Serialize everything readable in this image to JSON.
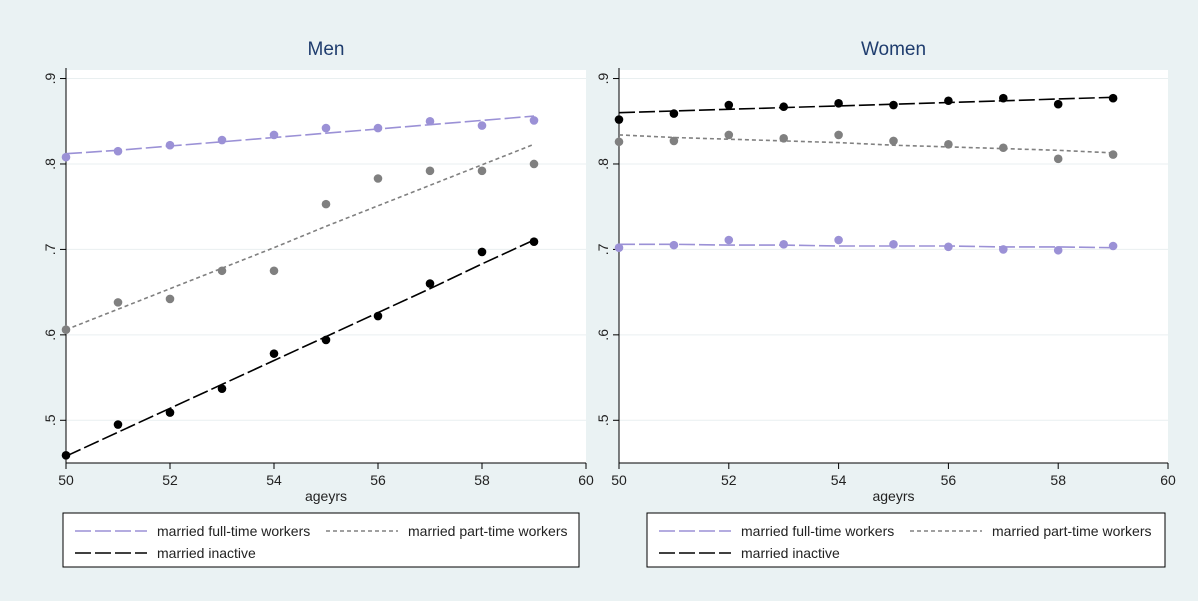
{
  "chart_data": [
    {
      "type": "scatter",
      "title": "Men",
      "xlabel": "ageyrs",
      "ylabel": "",
      "xlim": [
        50,
        60
      ],
      "ylim": [
        0.45,
        0.91
      ],
      "x_ticks": [
        50,
        52,
        54,
        56,
        58,
        60
      ],
      "x_tick_labels": [
        "50",
        "52",
        "54",
        "56",
        "58",
        "60"
      ],
      "y_ticks": [
        0.5,
        0.6,
        0.7,
        0.8,
        0.9
      ],
      "y_tick_labels": [
        ".5",
        ".6",
        ".7",
        ".8",
        ".9"
      ],
      "grid": true,
      "legend_position": "bottom",
      "series": [
        {
          "name": "married full-time workers",
          "color": "#9b91d6",
          "line_style": "long-dash",
          "x": [
            50,
            51,
            52,
            53,
            54,
            55,
            56,
            57,
            58,
            59
          ],
          "points": [
            0.808,
            0.815,
            0.822,
            0.828,
            0.834,
            0.842,
            0.842,
            0.85,
            0.845,
            0.851
          ],
          "fit": [
            0.812,
            0.816,
            0.821,
            0.826,
            0.831,
            0.836,
            0.841,
            0.846,
            0.851,
            0.856
          ]
        },
        {
          "name": "married part-time workers",
          "color": "#808080",
          "line_style": "short-dash",
          "x": [
            50,
            51,
            52,
            53,
            54,
            55,
            56,
            57,
            58,
            59
          ],
          "points": [
            0.606,
            0.638,
            0.642,
            0.675,
            0.675,
            0.753,
            0.783,
            0.792,
            0.792,
            0.8
          ],
          "fit": [
            0.606,
            0.63,
            0.654,
            0.678,
            0.702,
            0.727,
            0.751,
            0.775,
            0.799,
            0.823
          ]
        },
        {
          "name": "married inactive",
          "color": "#000000",
          "line_style": "long-dash",
          "x": [
            50,
            51,
            52,
            53,
            54,
            55,
            56,
            57,
            58,
            59
          ],
          "points": [
            0.459,
            0.495,
            0.509,
            0.537,
            0.578,
            0.594,
            0.622,
            0.66,
            0.697,
            0.709
          ],
          "fit": [
            0.458,
            0.486,
            0.514,
            0.542,
            0.57,
            0.598,
            0.626,
            0.654,
            0.683,
            0.711
          ]
        }
      ]
    },
    {
      "type": "scatter",
      "title": "Women",
      "xlabel": "ageyrs",
      "ylabel": "",
      "xlim": [
        50,
        60
      ],
      "ylim": [
        0.45,
        0.91
      ],
      "x_ticks": [
        50,
        52,
        54,
        56,
        58,
        60
      ],
      "x_tick_labels": [
        "50",
        "52",
        "54",
        "56",
        "58",
        "60"
      ],
      "y_ticks": [
        0.5,
        0.6,
        0.7,
        0.8,
        0.9
      ],
      "y_tick_labels": [
        ".5",
        ".6",
        ".7",
        ".8",
        ".9"
      ],
      "grid": true,
      "legend_position": "bottom",
      "series": [
        {
          "name": "married full-time workers",
          "color": "#9b91d6",
          "line_style": "long-dash",
          "x": [
            50,
            51,
            52,
            53,
            54,
            55,
            56,
            57,
            58,
            59
          ],
          "points": [
            0.702,
            0.705,
            0.711,
            0.706,
            0.711,
            0.706,
            0.703,
            0.7,
            0.699,
            0.704
          ],
          "fit": [
            0.706,
            0.706,
            0.705,
            0.705,
            0.704,
            0.704,
            0.704,
            0.703,
            0.703,
            0.702
          ]
        },
        {
          "name": "married part-time workers",
          "color": "#808080",
          "line_style": "short-dash",
          "x": [
            50,
            51,
            52,
            53,
            54,
            55,
            56,
            57,
            58,
            59
          ],
          "points": [
            0.826,
            0.827,
            0.834,
            0.83,
            0.834,
            0.827,
            0.823,
            0.819,
            0.806,
            0.811
          ],
          "fit": [
            0.834,
            0.831,
            0.829,
            0.827,
            0.825,
            0.822,
            0.82,
            0.818,
            0.816,
            0.813
          ]
        },
        {
          "name": "married inactive",
          "color": "#000000",
          "line_style": "long-dash",
          "x": [
            50,
            51,
            52,
            53,
            54,
            55,
            56,
            57,
            58,
            59
          ],
          "points": [
            0.852,
            0.859,
            0.869,
            0.867,
            0.871,
            0.869,
            0.874,
            0.877,
            0.87,
            0.877
          ],
          "fit": [
            0.86,
            0.862,
            0.864,
            0.866,
            0.868,
            0.87,
            0.872,
            0.874,
            0.876,
            0.878
          ]
        }
      ]
    }
  ]
}
